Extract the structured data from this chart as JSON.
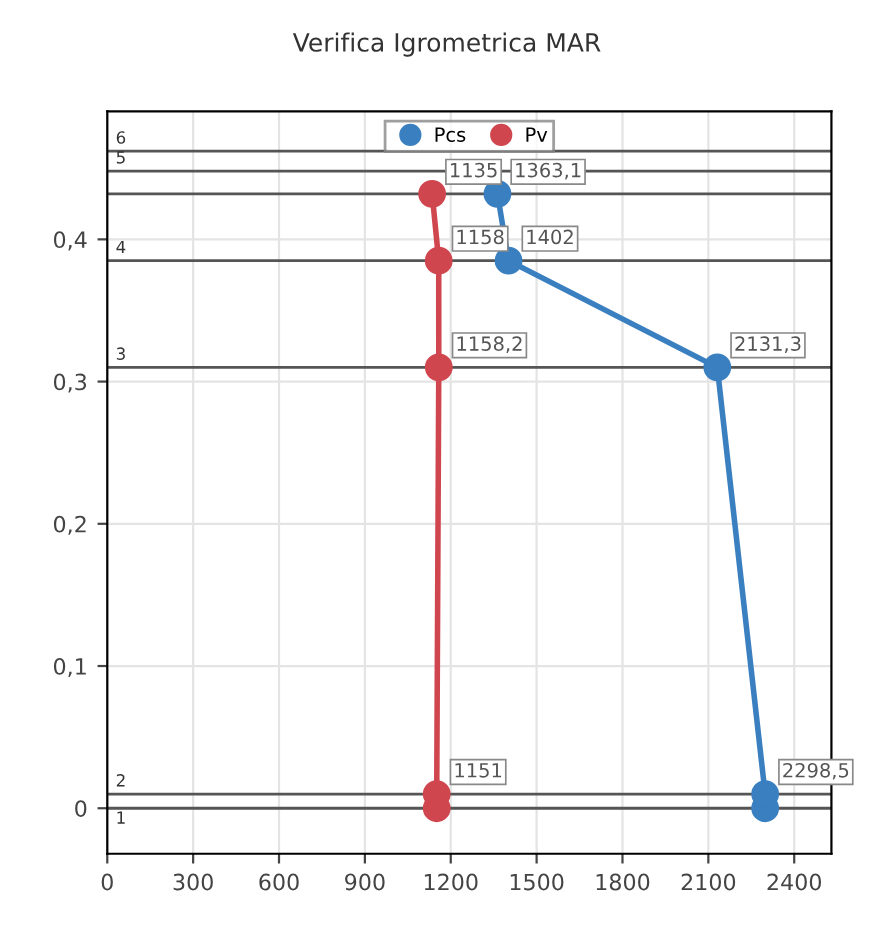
{
  "chart_data": {
    "type": "line",
    "title": "Verifica Igrometrica MAR",
    "series": [
      {
        "name": "Pcs",
        "color": "#3a7fc0",
        "x": [
          2298.5,
          2298.5,
          2131.3,
          1402,
          1363.1
        ],
        "values": [
          0,
          0.01,
          0.31,
          0.385,
          0.432
        ]
      },
      {
        "name": "Pv",
        "color": "#d0464f",
        "x": [
          1151,
          1151,
          1158.2,
          1158,
          1135
        ],
        "values": [
          0,
          0.01,
          0.31,
          0.385,
          0.432
        ]
      }
    ],
    "xlim": [
      0,
      2530
    ],
    "xticks": [
      0,
      300,
      600,
      900,
      1200,
      1500,
      1800,
      2100,
      2400
    ],
    "ylim": [
      -0.032,
      0.49
    ],
    "yticks": [
      0,
      {
        "value": 0.1,
        "label": "0,1"
      },
      {
        "value": 0.2,
        "label": "0,2"
      },
      {
        "value": 0.3,
        "label": "0,3"
      },
      {
        "value": 0.4,
        "label": "0,4"
      }
    ],
    "ref_lines": [
      {
        "axis": "y",
        "value": 0,
        "color": "#555555"
      },
      {
        "axis": "y",
        "value": 0.01,
        "color": "#555555"
      },
      {
        "axis": "y",
        "value": 0.31,
        "color": "#555555"
      },
      {
        "axis": "y",
        "value": 0.385,
        "color": "#555555"
      },
      {
        "axis": "y",
        "value": 0.432,
        "color": "#555555"
      },
      {
        "axis": "y",
        "value": 0.448,
        "color": "#555555"
      },
      {
        "axis": "y",
        "value": 0.462,
        "color": "#555555"
      }
    ],
    "annotations": [
      {
        "text": "1",
        "x": 0,
        "y": 0
      },
      {
        "text": "2",
        "x": 0,
        "y": 0.01
      },
      {
        "text": "3",
        "x": 0,
        "y": 0.31
      },
      {
        "text": "4",
        "x": 0,
        "y": 0.385
      },
      {
        "text": "5",
        "x": 0,
        "y": 0.448
      },
      {
        "text": "6",
        "x": 0,
        "y": 0.462
      },
      {
        "text": "1151",
        "x": 1151,
        "y": 0.01
      },
      {
        "text": "1158,2",
        "x": 1158.2,
        "y": 0.31
      },
      {
        "text": "1158",
        "x": 1158,
        "y": 0.385
      },
      {
        "text": "1135",
        "x": 1135,
        "y": 0.432
      },
      {
        "text": "2298,5",
        "x": 2298.5,
        "y": 0.01
      },
      {
        "text": "2131,3",
        "x": 2131.3,
        "y": 0.31
      },
      {
        "text": "1402",
        "x": 1402,
        "y": 0.385
      },
      {
        "text": "1363,1",
        "x": 1363.1,
        "y": 0.432
      }
    ],
    "marker": "circle",
    "grid": true,
    "legend": "top"
  }
}
